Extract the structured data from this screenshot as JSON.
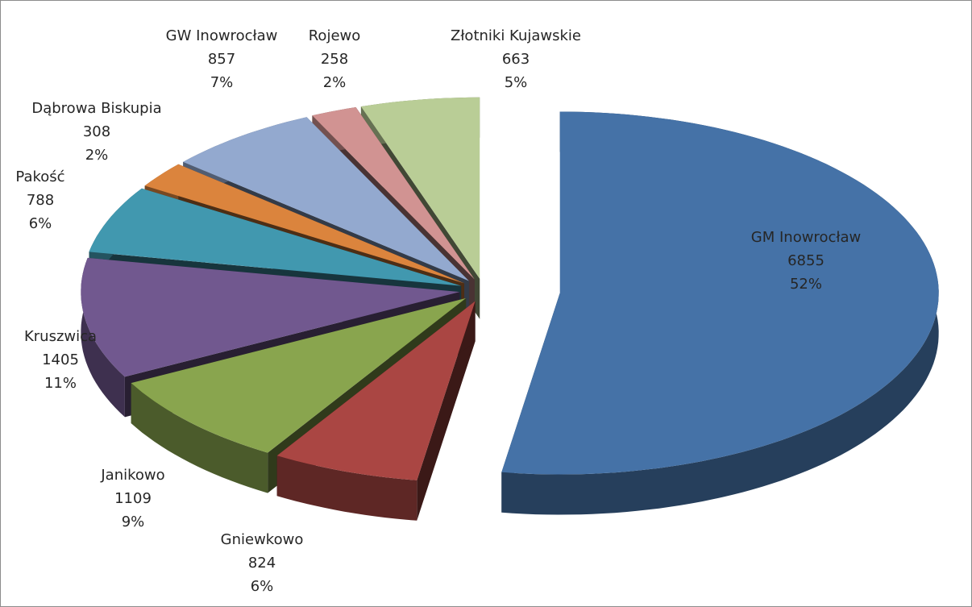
{
  "chart_data": {
    "type": "pie",
    "categories": [
      "GM Inowrocław",
      "Gniewkowo",
      "Janikowo",
      "Kruszwica",
      "Pakość",
      "Dąbrowa Biskupia",
      "GW Inowrocław",
      "Rojewo",
      "Złotniki Kujawskie"
    ],
    "values": [
      6855,
      824,
      1109,
      1405,
      788,
      308,
      857,
      258,
      663
    ],
    "percent_labels": [
      "52%",
      "6%",
      "9%",
      "11%",
      "6%",
      "2%",
      "7%",
      "2%",
      "5%"
    ],
    "colors": [
      "#4572a7",
      "#aa4643",
      "#89a54e",
      "#71588f",
      "#4198af",
      "#db843d",
      "#93a9cf",
      "#d19392",
      "#b9cd96"
    ]
  }
}
